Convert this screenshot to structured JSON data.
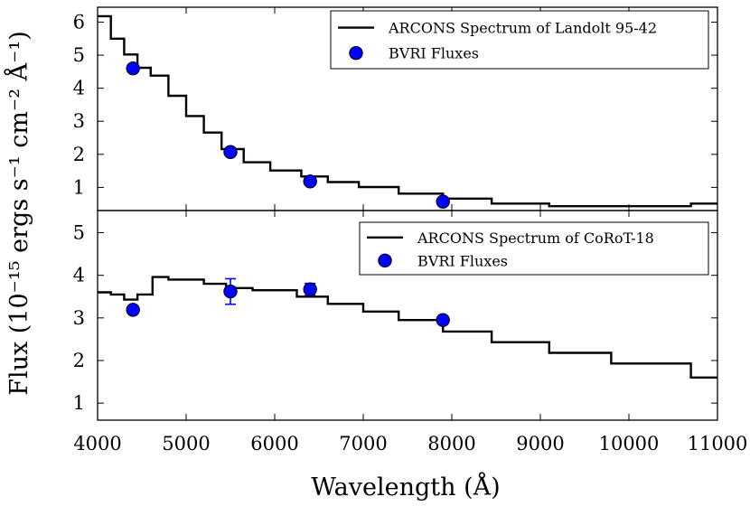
{
  "figure": {
    "xlabel": "Wavelength (Å)",
    "ylabel": "Flux (10⁻¹⁵ ergs s⁻¹ cm⁻² Å⁻¹)"
  },
  "chart_data": [
    {
      "type": "line",
      "title": "",
      "xlabel": "Wavelength (Å)",
      "ylabel": "Flux (10⁻¹⁵ ergs s⁻¹ cm⁻² Å⁻¹)",
      "xlim": [
        4000,
        11000
      ],
      "ylim": [
        0.3,
        6.45
      ],
      "xticks": [
        4000,
        5000,
        6000,
        7000,
        8000,
        9000,
        10000,
        11000
      ],
      "yticks": [
        1,
        2,
        3,
        4,
        5,
        6
      ],
      "x_tick_labels_visible": false,
      "legend_position": "top-right",
      "grid": false,
      "series": [
        {
          "name": "ARCONS Spectrum of Landolt 95-42",
          "kind": "step",
          "color": "#000000",
          "edges": [
            4000,
            4150,
            4300,
            4450,
            4600,
            4800,
            5000,
            5200,
            5400,
            5650,
            5950,
            6300,
            6600,
            6950,
            7400,
            7900,
            8450,
            9100,
            10700,
            11000
          ],
          "values": [
            6.18,
            5.5,
            5.02,
            4.62,
            4.38,
            3.77,
            3.16,
            2.66,
            2.16,
            1.76,
            1.51,
            1.33,
            1.16,
            1.01,
            0.81,
            0.66,
            0.51,
            0.43,
            0.51
          ]
        },
        {
          "name": "BVRI Fluxes",
          "kind": "scatter",
          "color": "#0000ff",
          "x": [
            4400,
            5500,
            6400,
            7900
          ],
          "y": [
            4.6,
            2.07,
            1.18,
            0.57
          ],
          "yerr": [
            0,
            0,
            0,
            0
          ]
        }
      ]
    },
    {
      "type": "line",
      "title": "",
      "xlabel": "Wavelength (Å)",
      "ylabel": "Flux (10⁻¹⁵ ergs s⁻¹ cm⁻² Å⁻¹)",
      "xlim": [
        4000,
        11000
      ],
      "ylim": [
        0.6,
        5.52
      ],
      "xticks": [
        4000,
        5000,
        6000,
        7000,
        8000,
        9000,
        10000,
        11000
      ],
      "yticks": [
        1,
        2,
        3,
        4,
        5
      ],
      "x_tick_labels_visible": true,
      "legend_position": "top-right",
      "grid": false,
      "series": [
        {
          "name": "ARCONS Spectrum of CoRoT-18",
          "kind": "step",
          "color": "#000000",
          "edges": [
            4000,
            4150,
            4300,
            4450,
            4620,
            4800,
            5200,
            5450,
            5750,
            6250,
            6600,
            7000,
            7400,
            7900,
            8450,
            9100,
            9800,
            10700,
            11000
          ],
          "values": [
            3.6,
            3.55,
            3.43,
            3.55,
            3.96,
            3.9,
            3.8,
            3.7,
            3.65,
            3.5,
            3.33,
            3.15,
            2.95,
            2.68,
            2.43,
            2.18,
            1.93,
            1.6
          ],
          "end_value": 1.6
        },
        {
          "name": "BVRI Fluxes",
          "kind": "scatter",
          "color": "#0000ff",
          "x": [
            4400,
            5500,
            6400,
            7900
          ],
          "y": [
            3.19,
            3.62,
            3.67,
            2.95
          ],
          "yerr": [
            0,
            0.3,
            0.14,
            0
          ]
        }
      ]
    }
  ]
}
